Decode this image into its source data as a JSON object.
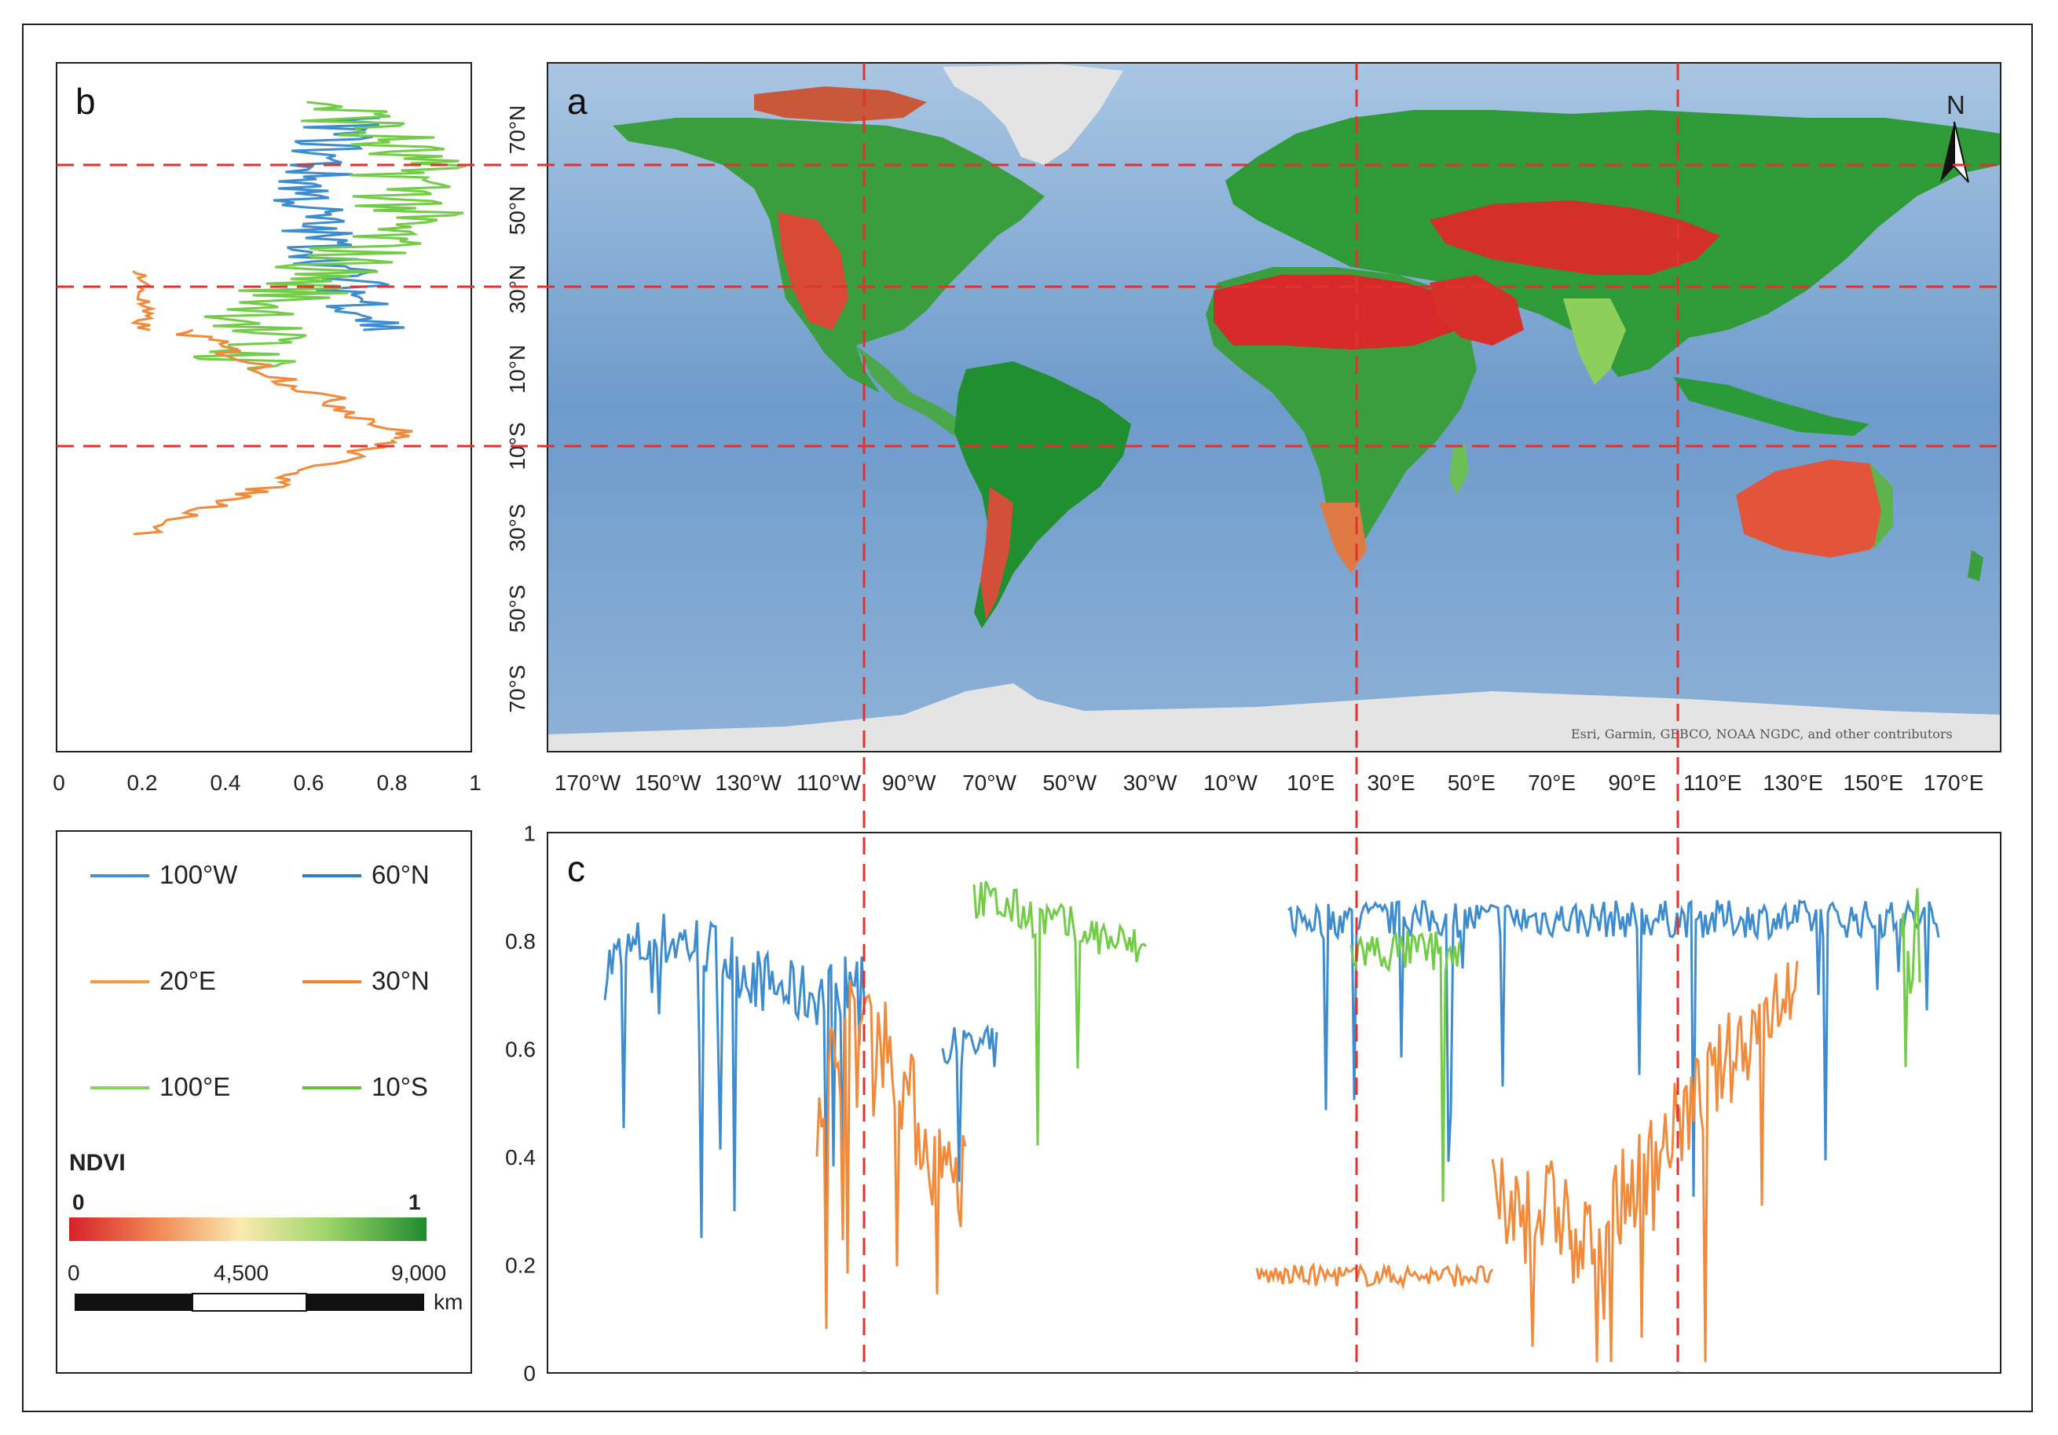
{
  "panels": {
    "a": "a",
    "b": "b",
    "c": "c"
  },
  "map": {
    "lat_labels": [
      "70°N",
      "50°N",
      "30°N",
      "10°N",
      "10°S",
      "30°S",
      "50°S",
      "70°S"
    ],
    "lon_labels": [
      "170°W",
      "150°W",
      "130°W",
      "110°W",
      "90°W",
      "70°W",
      "50°W",
      "30°W",
      "10°W",
      "10°E",
      "30°E",
      "50°E",
      "70°E",
      "90°E",
      "110°E",
      "130°E",
      "150°E",
      "170°E"
    ],
    "north_label": "N",
    "credit": "Esri, Garmin, GEBCO, NOAA NGDC, and other contributors",
    "transect_lons": [
      "100°W",
      "20°E",
      "100°E"
    ],
    "transect_lats": [
      "60°N",
      "30°N",
      "10°S"
    ],
    "colors": {
      "ocean": "#7aa6d2",
      "land_green": "#2f9a3a",
      "land_red": "#d8362a",
      "ice": "#e6e6e6",
      "dash": "#e0322f"
    }
  },
  "legend": {
    "items": [
      {
        "label": "100°W",
        "color": "#4a90d0"
      },
      {
        "label": "60°N",
        "color": "#2f7fc4"
      },
      {
        "label": "20°E",
        "color": "#f59a4c"
      },
      {
        "label": "30°N",
        "color": "#f08332"
      },
      {
        "label": "100°E",
        "color": "#86d45a"
      },
      {
        "label": "10°S",
        "color": "#62c23a"
      }
    ],
    "ndvi_title": "NDVI",
    "ndvi_min": "0",
    "ndvi_max": "1",
    "scale_labels": [
      "0",
      "4,500",
      "9,000"
    ],
    "scale_unit": "km"
  },
  "chart_data": [
    {
      "type": "line",
      "panel": "b",
      "x_ticks": [
        "0",
        "0.2",
        "0.4",
        "0.6",
        "0.8",
        "1"
      ],
      "xlim": [
        0,
        1
      ],
      "series": [
        {
          "name": "60°N",
          "values_desc": "NDVI along meridional profile"
        },
        {
          "name": "30°N"
        },
        {
          "name": "10°S"
        }
      ]
    },
    {
      "type": "line",
      "panel": "c",
      "y_ticks": [
        "0",
        "0.2",
        "0.4",
        "0.6",
        "0.8",
        "1"
      ],
      "ylim": [
        0,
        1
      ],
      "series": [
        {
          "name": "100°W"
        },
        {
          "name": "20°E"
        },
        {
          "name": "100°E"
        }
      ]
    }
  ]
}
